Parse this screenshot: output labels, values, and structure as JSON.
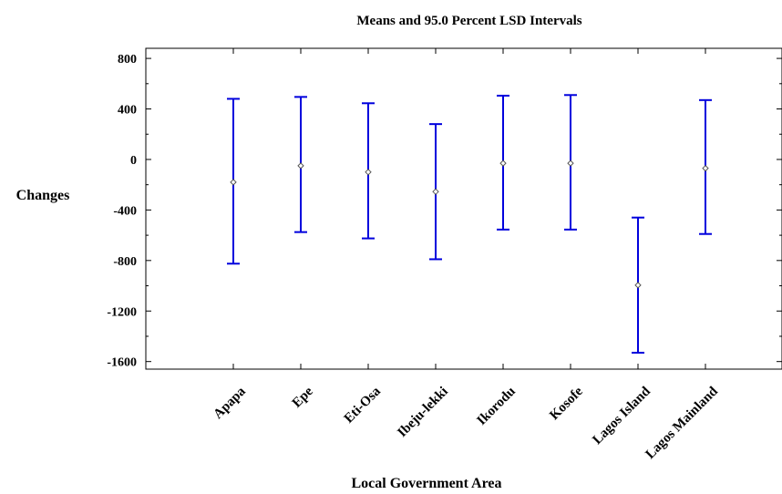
{
  "chart_data": {
    "type": "interval",
    "title": "Means and 95.0 Percent LSD Intervals",
    "xlabel": "Local Government Area",
    "ylabel": "Changes",
    "categories": [
      "Apapa",
      "Epe",
      "Eti-Osa",
      "Ibeju-lekki",
      "Ikorodu",
      "Kosofe",
      "Lagos Island",
      "Lagos Mainland"
    ],
    "means": [
      -180,
      -50,
      -100,
      -255,
      -30,
      -30,
      -995,
      -70
    ],
    "lower": [
      -825,
      -575,
      -625,
      -790,
      -555,
      -555,
      -1530,
      -590
    ],
    "upper": [
      480,
      495,
      445,
      280,
      505,
      510,
      -460,
      470
    ],
    "ylim": [
      -1660,
      880
    ],
    "yticks": [
      "800",
      "400",
      "0",
      "-400",
      "-800",
      "-1200",
      "-1600"
    ],
    "ytick_values": [
      800,
      400,
      0,
      -400,
      -800,
      -1200,
      -1600
    ],
    "grid": false,
    "colors": {
      "interval": "#0000dd",
      "mean_marker": "#555555",
      "axis": "#000000"
    }
  }
}
